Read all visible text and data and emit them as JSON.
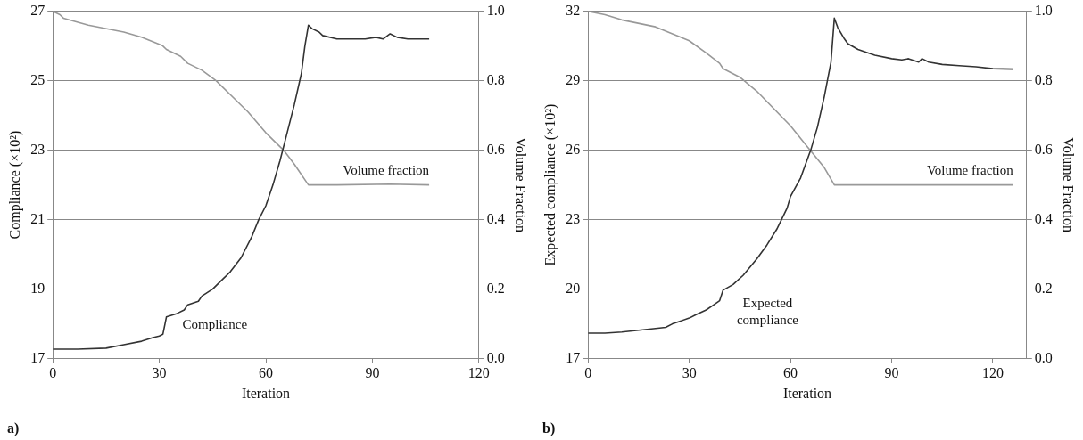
{
  "chart_data": [
    {
      "type": "line",
      "xlabel": "Iteration",
      "ylabel": "Compliance (×10²)",
      "y2label": "Volume Fraction",
      "xlim": [
        0,
        120
      ],
      "xticks": [
        0,
        30,
        60,
        90,
        120
      ],
      "ylim": [
        17,
        27
      ],
      "yticks": [
        17,
        19,
        21,
        23,
        25,
        27
      ],
      "y2lim": [
        0,
        1
      ],
      "y2ticks": [
        {
          "value": 0,
          "label": "0.0"
        },
        {
          "value": 0.2,
          "label": "0.2"
        },
        {
          "value": 0.4,
          "label": "0.4"
        },
        {
          "value": 0.6,
          "label": "0.6"
        },
        {
          "value": 0.8,
          "label": "0.8"
        },
        {
          "value": 1,
          "label": "1.0"
        }
      ],
      "grid": "y",
      "legend": false,
      "marker": "none",
      "line_style": "solid",
      "annotations": [
        "a)"
      ],
      "series": [
        {
          "name": "Compliance",
          "color": "#333333",
          "x": [
            0,
            7,
            15,
            20,
            25,
            28,
            30,
            31,
            32,
            35,
            37,
            38,
            41,
            42,
            45,
            48,
            50,
            53,
            56,
            58,
            60,
            62,
            64,
            66,
            68,
            70,
            71,
            72,
            73,
            75,
            76,
            80,
            85,
            88,
            91,
            93,
            95,
            97,
            100,
            106
          ],
          "values": [
            17.27,
            17.27,
            17.3,
            17.4,
            17.5,
            17.6,
            17.65,
            17.7,
            18.2,
            18.3,
            18.4,
            18.55,
            18.65,
            18.8,
            19.0,
            19.3,
            19.5,
            19.9,
            20.5,
            21.0,
            21.4,
            22.0,
            22.7,
            23.5,
            24.3,
            25.2,
            26.0,
            26.6,
            26.5,
            26.4,
            26.3,
            26.2,
            26.2,
            26.2,
            26.25,
            26.2,
            26.35,
            26.25,
            26.2,
            26.2
          ]
        },
        {
          "name": "Volume fraction",
          "color": "#999999",
          "axis": "y2",
          "x": [
            0,
            2,
            3,
            10,
            20,
            25,
            30,
            31,
            32,
            36,
            38,
            42,
            46,
            50,
            55,
            60,
            65,
            68,
            72,
            80,
            95,
            106
          ],
          "values": [
            1.0,
            0.99,
            0.98,
            0.96,
            0.94,
            0.925,
            0.905,
            0.9,
            0.89,
            0.87,
            0.85,
            0.83,
            0.8,
            0.76,
            0.71,
            0.65,
            0.6,
            0.56,
            0.5,
            0.5,
            0.502,
            0.5
          ]
        }
      ]
    },
    {
      "type": "line",
      "xlabel": "Iteration",
      "ylabel": "Expected compliance (×10²)",
      "y2label": "Volume Fraction",
      "xlim": [
        0,
        130
      ],
      "xticks": [
        0,
        30,
        60,
        90,
        120
      ],
      "ylim": [
        17,
        32
      ],
      "yticks": [
        17,
        20,
        23,
        26,
        29,
        32
      ],
      "y2lim": [
        0,
        1
      ],
      "y2ticks": [
        {
          "value": 0,
          "label": "0.0"
        },
        {
          "value": 0.2,
          "label": "0.2"
        },
        {
          "value": 0.4,
          "label": "0.4"
        },
        {
          "value": 0.6,
          "label": "0.6"
        },
        {
          "value": 0.8,
          "label": "0.8"
        },
        {
          "value": 1,
          "label": "1.0"
        }
      ],
      "grid": "y",
      "legend": false,
      "marker": "none",
      "line_style": "solid",
      "annotations": [
        "b)"
      ],
      "series": [
        {
          "name": "Expected compliance",
          "color": "#333333",
          "x": [
            0,
            5,
            10,
            20,
            23,
            25,
            30,
            32,
            35,
            37,
            39,
            40,
            43,
            46,
            50,
            53,
            56,
            59,
            60,
            63,
            66,
            68,
            70,
            72,
            73,
            74,
            76,
            77,
            80,
            85,
            90,
            93,
            95,
            98,
            99,
            101,
            105,
            110,
            115,
            120,
            126
          ],
          "values": [
            18.1,
            18.1,
            18.15,
            18.3,
            18.35,
            18.5,
            18.75,
            18.9,
            19.1,
            19.3,
            19.5,
            19.95,
            20.2,
            20.6,
            21.3,
            21.9,
            22.6,
            23.5,
            24.0,
            24.8,
            26.0,
            27.0,
            28.3,
            29.8,
            31.7,
            31.3,
            30.8,
            30.6,
            30.35,
            30.1,
            29.95,
            29.9,
            29.95,
            29.8,
            29.95,
            29.8,
            29.7,
            29.65,
            29.6,
            29.52,
            29.5
          ]
        },
        {
          "name": "Volume fraction",
          "color": "#999999",
          "axis": "y2",
          "x": [
            0,
            5,
            10,
            20,
            25,
            30,
            35,
            39,
            40,
            45,
            50,
            55,
            60,
            65,
            70,
            73,
            126
          ],
          "values": [
            1.0,
            0.99,
            0.975,
            0.955,
            0.935,
            0.915,
            0.88,
            0.85,
            0.835,
            0.81,
            0.77,
            0.72,
            0.67,
            0.61,
            0.55,
            0.5,
            0.5
          ]
        }
      ]
    }
  ]
}
